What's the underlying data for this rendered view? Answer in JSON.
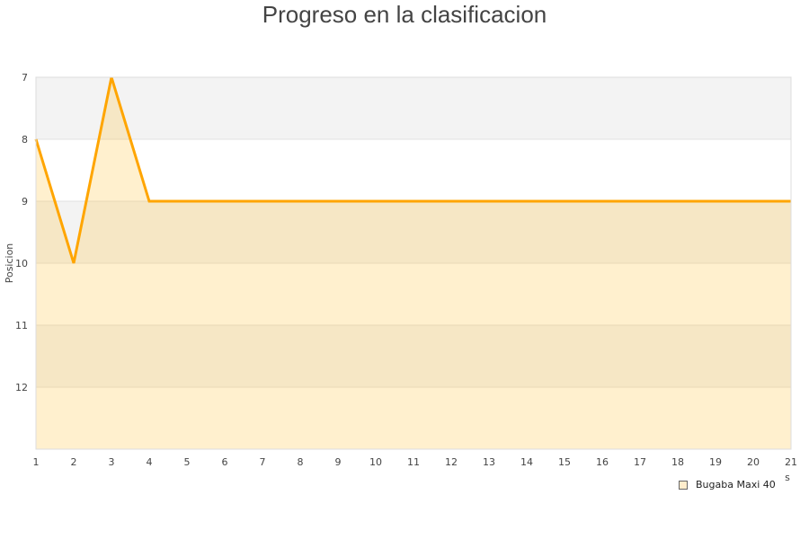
{
  "chart_data": {
    "type": "area",
    "title": "Progreso en la clasificacion",
    "ylabel": "Posicion",
    "xlabel": "s",
    "x": [
      1,
      2,
      3,
      4,
      5,
      6,
      7,
      8,
      9,
      10,
      11,
      12,
      13,
      14,
      15,
      16,
      17,
      18,
      19,
      20,
      21
    ],
    "series": [
      {
        "name": "Bugaba Maxi 40",
        "values": [
          8,
          10,
          7,
          9,
          9,
          9,
          9,
          9,
          9,
          9,
          9,
          9,
          9,
          9,
          9,
          9,
          9,
          9,
          9,
          9,
          9
        ]
      }
    ],
    "yticks": [
      7,
      8,
      9,
      10,
      11,
      12
    ],
    "ylim": [
      7,
      13
    ],
    "y_inverted": true,
    "xlim": [
      1,
      21
    ],
    "grid": true,
    "legend": "bottom-right",
    "colors": {
      "line": "#ffa500",
      "fill": "#ffedcc",
      "band": "#f3f3f3"
    }
  }
}
